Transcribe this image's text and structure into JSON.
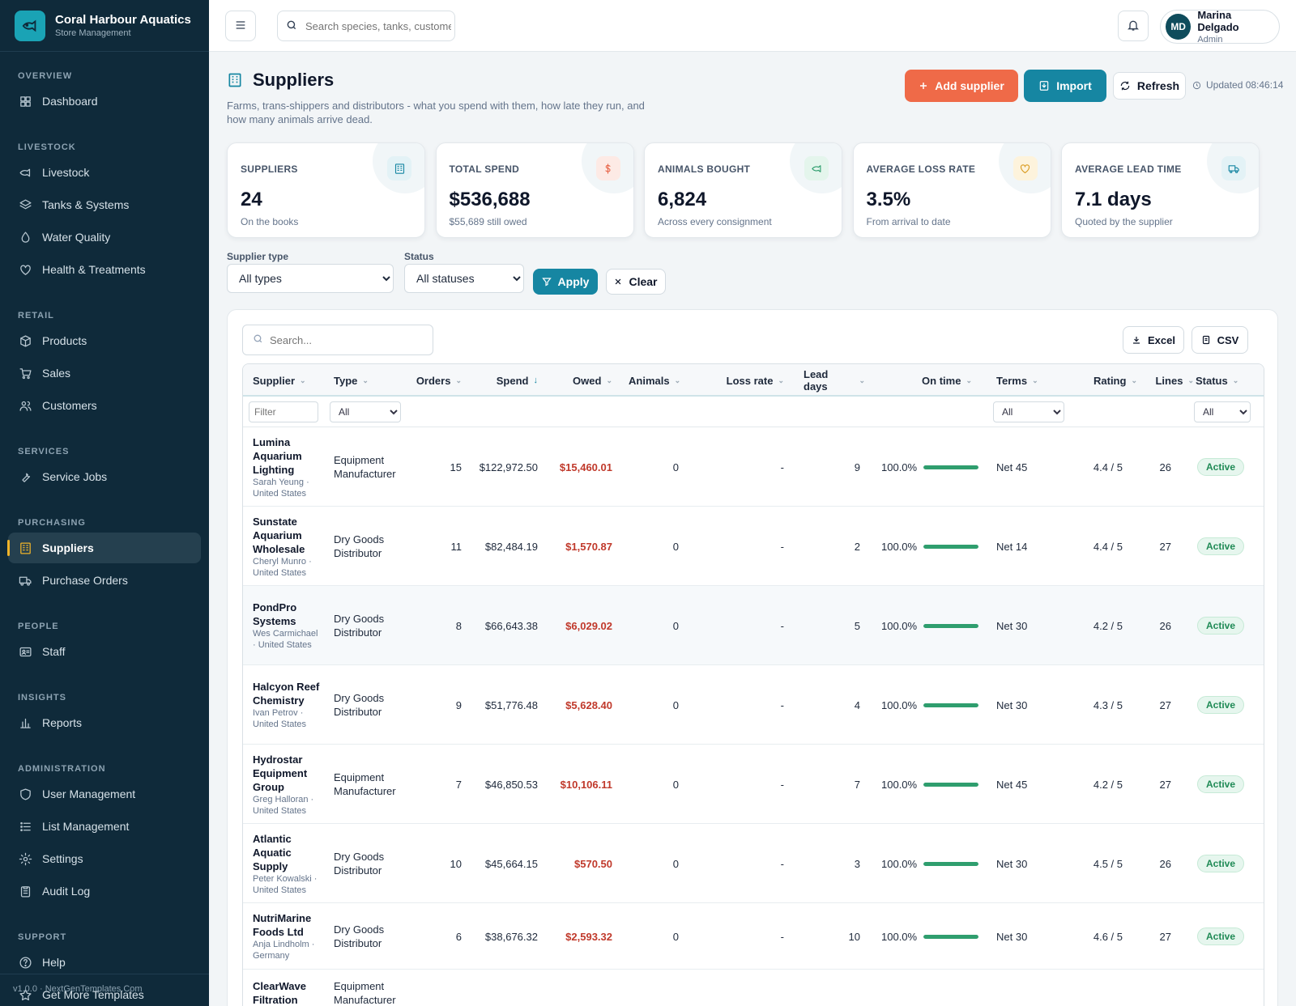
{
  "brand": {
    "name": "Coral Harbour Aquatics",
    "sub": "Store Management"
  },
  "nav": [
    {
      "section": "OVERVIEW",
      "items": [
        {
          "label": "Dashboard",
          "icon": "grid-icon"
        }
      ]
    },
    {
      "section": "LIVESTOCK",
      "items": [
        {
          "label": "Livestock",
          "icon": "fish-icon"
        },
        {
          "label": "Tanks & Systems",
          "icon": "layers-icon"
        },
        {
          "label": "Water Quality",
          "icon": "droplet-icon"
        },
        {
          "label": "Health & Treatments",
          "icon": "heart-icon"
        }
      ]
    },
    {
      "section": "RETAIL",
      "items": [
        {
          "label": "Products",
          "icon": "box-icon"
        },
        {
          "label": "Sales",
          "icon": "cart-icon"
        },
        {
          "label": "Customers",
          "icon": "users-icon"
        }
      ]
    },
    {
      "section": "SERVICES",
      "items": [
        {
          "label": "Service Jobs",
          "icon": "wrench-icon"
        }
      ]
    },
    {
      "section": "PURCHASING",
      "items": [
        {
          "label": "Suppliers",
          "icon": "building-icon",
          "active": true
        },
        {
          "label": "Purchase Orders",
          "icon": "truck-icon"
        }
      ]
    },
    {
      "section": "PEOPLE",
      "items": [
        {
          "label": "Staff",
          "icon": "id-card-icon"
        }
      ]
    },
    {
      "section": "INSIGHTS",
      "items": [
        {
          "label": "Reports",
          "icon": "bar-chart-icon"
        }
      ]
    },
    {
      "section": "ADMINISTRATION",
      "items": [
        {
          "label": "User Management",
          "icon": "shield-icon"
        },
        {
          "label": "List Management",
          "icon": "list-icon"
        },
        {
          "label": "Settings",
          "icon": "gear-icon"
        },
        {
          "label": "Audit Log",
          "icon": "clipboard-icon"
        }
      ]
    },
    {
      "section": "SUPPORT",
      "items": [
        {
          "label": "Help",
          "icon": "help-icon"
        },
        {
          "label": "Get More Templates",
          "icon": "star-icon"
        }
      ]
    }
  ],
  "footer": "v1.0.0 · NextGenTemplates.Com",
  "topbar": {
    "search_placeholder": "Search species, tanks, customers...",
    "user_initials": "MD",
    "user_name": "Marina Delgado",
    "user_role": "Admin"
  },
  "page": {
    "title": "Suppliers",
    "description": "Farms, trans-shippers and distributors - what you spend with them, how late they run, and how many animals arrive dead.",
    "add_label": "Add supplier",
    "import_label": "Import",
    "refresh_label": "Refresh",
    "updated": "Updated 08:46:14"
  },
  "stats": [
    {
      "label": "SUPPLIERS",
      "value": "24",
      "sub": "On the books",
      "icon": "building-icon",
      "color": "#1686a2",
      "bg": "#e3f2f6"
    },
    {
      "label": "TOTAL SPEND",
      "value": "$536,688",
      "sub": "$55,689 still owed",
      "icon": "dollar-icon",
      "color": "#e8664a",
      "bg": "#fdeae5"
    },
    {
      "label": "ANIMALS BOUGHT",
      "value": "6,824",
      "sub": "Across every consignment",
      "icon": "fish-icon",
      "color": "#2f9e6e",
      "bg": "#e4f5ec"
    },
    {
      "label": "AVERAGE LOSS RATE",
      "value": "3.5%",
      "sub": "From arrival to date",
      "icon": "heart-icon",
      "color": "#d99a1e",
      "bg": "#fdf3dc"
    },
    {
      "label": "AVERAGE LEAD TIME",
      "value": "7.1 days",
      "sub": "Quoted by the supplier",
      "icon": "truck-icon",
      "color": "#1686a2",
      "bg": "#e3f2f6"
    }
  ],
  "filters": {
    "type_label": "Supplier type",
    "type_value": "All types",
    "status_label": "Status",
    "status_value": "All statuses",
    "apply_label": "Apply",
    "clear_label": "Clear"
  },
  "table": {
    "search_placeholder": "Search...",
    "excel_label": "Excel",
    "csv_label": "CSV",
    "columns": [
      "Supplier",
      "Type",
      "Orders",
      "Spend",
      "Owed",
      "Animals",
      "Loss rate",
      "Lead days",
      "On time",
      "Terms",
      "Rating",
      "Lines",
      "Status"
    ],
    "filter_placeholder": "Filter",
    "filter_all": "All",
    "rows": [
      {
        "name": "Lumina Aquarium Lighting",
        "contact": "Sarah Yeung · United States",
        "type": "Equipment Manufacturer",
        "orders": "15",
        "spend": "$122,972.50",
        "owed": "$15,460.01",
        "animals": "0",
        "loss": "-",
        "lead": "9",
        "ontime": "100.0%",
        "ontime_pct": 100,
        "terms": "Net 45",
        "rating": "4.4 / 5",
        "lines": "26",
        "status": "Active"
      },
      {
        "name": "Sunstate Aquarium Wholesale",
        "contact": "Cheryl Munro · United States",
        "type": "Dry Goods Distributor",
        "orders": "11",
        "spend": "$82,484.19",
        "owed": "$1,570.87",
        "animals": "0",
        "loss": "-",
        "lead": "2",
        "ontime": "100.0%",
        "ontime_pct": 100,
        "terms": "Net 14",
        "rating": "4.4 / 5",
        "lines": "27",
        "status": "Active"
      },
      {
        "name": "PondPro Systems",
        "contact": "Wes Carmichael · United States",
        "type": "Dry Goods Distributor",
        "orders": "8",
        "spend": "$66,643.38",
        "owed": "$6,029.02",
        "animals": "0",
        "loss": "-",
        "lead": "5",
        "ontime": "100.0%",
        "ontime_pct": 100,
        "terms": "Net 30",
        "rating": "4.2 / 5",
        "lines": "26",
        "status": "Active"
      },
      {
        "name": "Halcyon Reef Chemistry",
        "contact": "Ivan Petrov · United States",
        "type": "Dry Goods Distributor",
        "orders": "9",
        "spend": "$51,776.48",
        "owed": "$5,628.40",
        "animals": "0",
        "loss": "-",
        "lead": "4",
        "ontime": "100.0%",
        "ontime_pct": 100,
        "terms": "Net 30",
        "rating": "4.3 / 5",
        "lines": "27",
        "status": "Active"
      },
      {
        "name": "Hydrostar Equipment Group",
        "contact": "Greg Halloran · United States",
        "type": "Equipment Manufacturer",
        "orders": "7",
        "spend": "$46,850.53",
        "owed": "$10,106.11",
        "animals": "0",
        "loss": "-",
        "lead": "7",
        "ontime": "100.0%",
        "ontime_pct": 100,
        "terms": "Net 45",
        "rating": "4.2 / 5",
        "lines": "27",
        "status": "Active"
      },
      {
        "name": "Atlantic Aquatic Supply",
        "contact": "Peter Kowalski · United States",
        "type": "Dry Goods Distributor",
        "orders": "10",
        "spend": "$45,664.15",
        "owed": "$570.50",
        "animals": "0",
        "loss": "-",
        "lead": "3",
        "ontime": "100.0%",
        "ontime_pct": 100,
        "terms": "Net 30",
        "rating": "4.5 / 5",
        "lines": "26",
        "status": "Active"
      },
      {
        "name": "NutriMarine Foods Ltd",
        "contact": "Anja Lindholm · Germany",
        "type": "Dry Goods Distributor",
        "orders": "6",
        "spend": "$38,676.32",
        "owed": "$2,593.32",
        "animals": "0",
        "loss": "-",
        "lead": "10",
        "ontime": "100.0%",
        "ontime_pct": 100,
        "terms": "Net 30",
        "rating": "4.6 / 5",
        "lines": "27",
        "status": "Active"
      },
      {
        "name": "ClearWave Filtration",
        "contact": "",
        "type": "Equipment Manufacturer",
        "orders": "",
        "spend": "",
        "owed": "",
        "animals": "",
        "loss": "",
        "lead": "",
        "ontime": "",
        "ontime_pct": 0,
        "terms": "",
        "rating": "",
        "lines": "",
        "status": ""
      }
    ]
  }
}
